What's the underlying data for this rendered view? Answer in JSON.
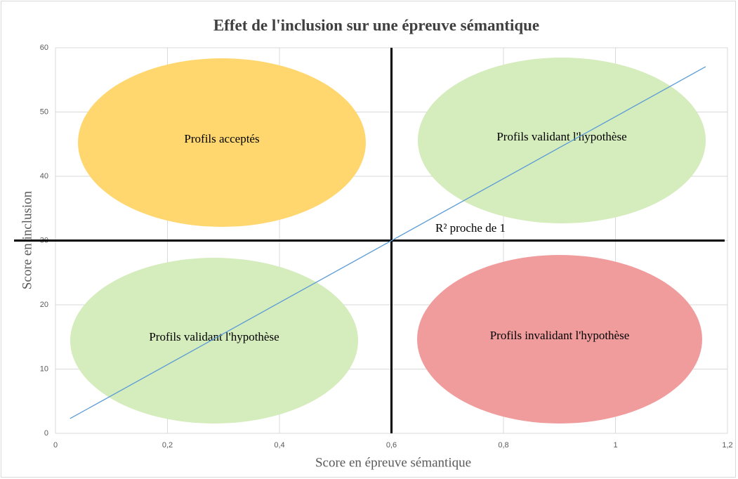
{
  "chart_data": {
    "type": "line",
    "title": "Effet de l'inclusion sur une épreuve sémantique",
    "xlabel": "Score en épreuve sémantique",
    "ylabel": "Score en inclusion",
    "series": [
      {
        "color": "#5b9bd5",
        "x": [
          0.026,
          1.161
        ],
        "values": [
          2.3,
          57.05
        ]
      }
    ],
    "xlim": [
      0,
      1.2
    ],
    "xticks": [
      0,
      {
        "value": 0.2,
        "label": "0,2"
      },
      {
        "value": 0.4,
        "label": "0,4"
      },
      {
        "value": 0.6,
        "label": "0,6"
      },
      {
        "value": 0.8,
        "label": "0,8"
      },
      1,
      {
        "value": 1.2,
        "label": "1,2"
      }
    ],
    "ylim": [
      0,
      60
    ],
    "yticks": [
      0,
      10,
      20,
      30,
      40,
      50,
      60
    ],
    "grid": true,
    "xref": 0.6,
    "yref": 30,
    "annotations": [
      {
        "text": "Profils acceptés",
        "color": "#ffd76e"
      },
      {
        "text": "Profils validant  l'hypothèse",
        "color": "#d5ecbd"
      },
      {
        "text": "Profils validant  l'hypothèse",
        "color": "#d5ecbd"
      },
      {
        "text": "Profils invalidant  l'hypothèse",
        "color": "#f19c9c"
      }
    ],
    "note": "R² proche de 1"
  }
}
